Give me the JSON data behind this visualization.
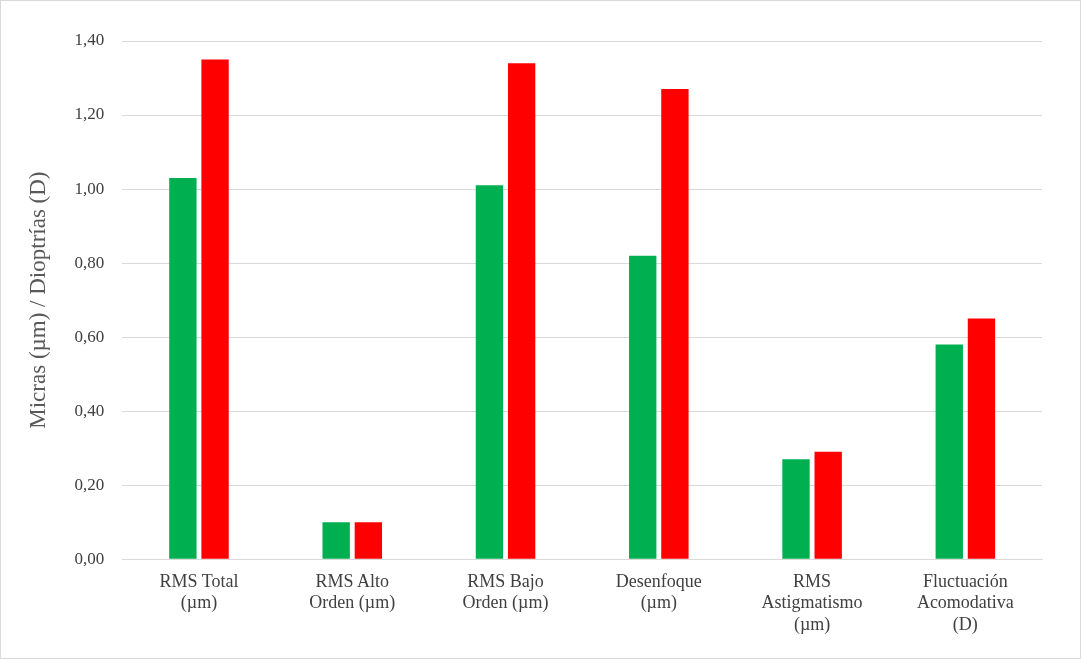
{
  "chart_data": {
    "type": "bar",
    "ylabel": "Micras (µm) / Dioptrías (D)",
    "categories": [
      "RMS Total (µm)",
      "RMS Alto Orden (µm)",
      "RMS Bajo Orden (µm)",
      "Desenfoque (µm)",
      "RMS Astigmatismo (µm)",
      "Fluctuación Acomodativa (D)"
    ],
    "series": [
      {
        "color": "#00b050",
        "values": [
          1.03,
          0.1,
          1.01,
          0.82,
          0.27,
          0.58
        ]
      },
      {
        "color": "#ff0000",
        "values": [
          1.35,
          0.1,
          1.34,
          1.27,
          0.29,
          0.65
        ]
      }
    ],
    "ylim": [
      0,
      1.4
    ],
    "yticks": [
      {
        "value": 0,
        "label": "0,00"
      },
      {
        "value": 0.2,
        "label": "0,20"
      },
      {
        "value": 0.4,
        "label": "0,40"
      },
      {
        "value": 0.6,
        "label": "0,60"
      },
      {
        "value": 0.8,
        "label": "0,80"
      },
      {
        "value": 1,
        "label": "1,00"
      },
      {
        "value": 1.2,
        "label": "1,20"
      },
      {
        "value": 1.4,
        "label": "1,40"
      }
    ],
    "grid": "y",
    "legend": false
  }
}
